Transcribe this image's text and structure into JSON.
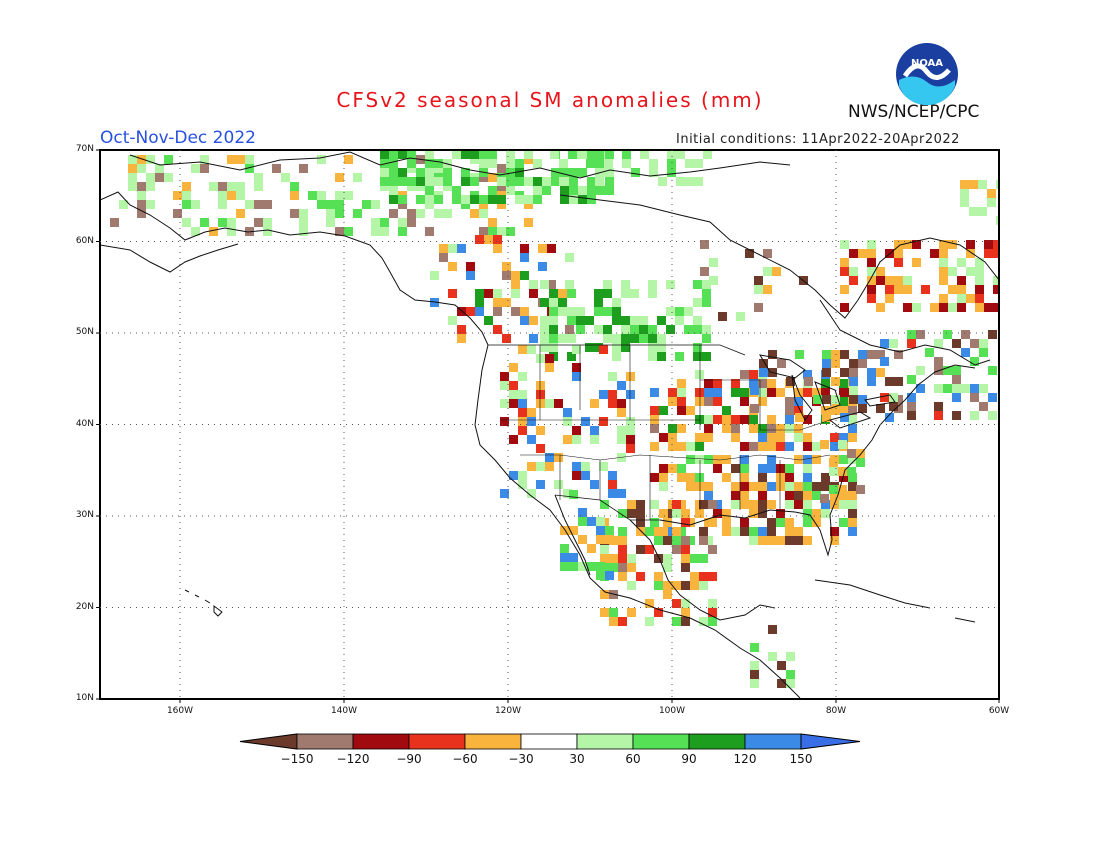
{
  "title": "CFSv2 seasonal SM anomalies (mm)",
  "season": "Oct-Nov-Dec 2022",
  "initial_conditions": "Initial conditions: 11Apr2022-20Apr2022",
  "agency": "NWS/NCEP/CPC",
  "logo_text": "NOAA",
  "lat_labels": [
    "70N",
    "60N",
    "50N",
    "40N",
    "30N",
    "20N",
    "10N"
  ],
  "lon_labels": [
    "160W",
    "140W",
    "120W",
    "100W",
    "80W",
    "60W"
  ],
  "colorbar": {
    "labels": [
      "−150",
      "−120",
      "−90",
      "−60",
      "−30",
      "30",
      "60",
      "90",
      "120",
      "150"
    ],
    "colors": [
      "#6b3a2a",
      "#a07a6e",
      "#a10b10",
      "#e8321e",
      "#f8b43c",
      "#ffffff",
      "#b4f5a8",
      "#55e055",
      "#1e9e1e",
      "#3a8ae6",
      "#3a6ee6"
    ]
  },
  "colors": {
    "title": "#e8141c",
    "season": "#2850e0",
    "dry_extreme": "#6b3a2a",
    "wet_extreme": "#3a6ee6"
  }
}
